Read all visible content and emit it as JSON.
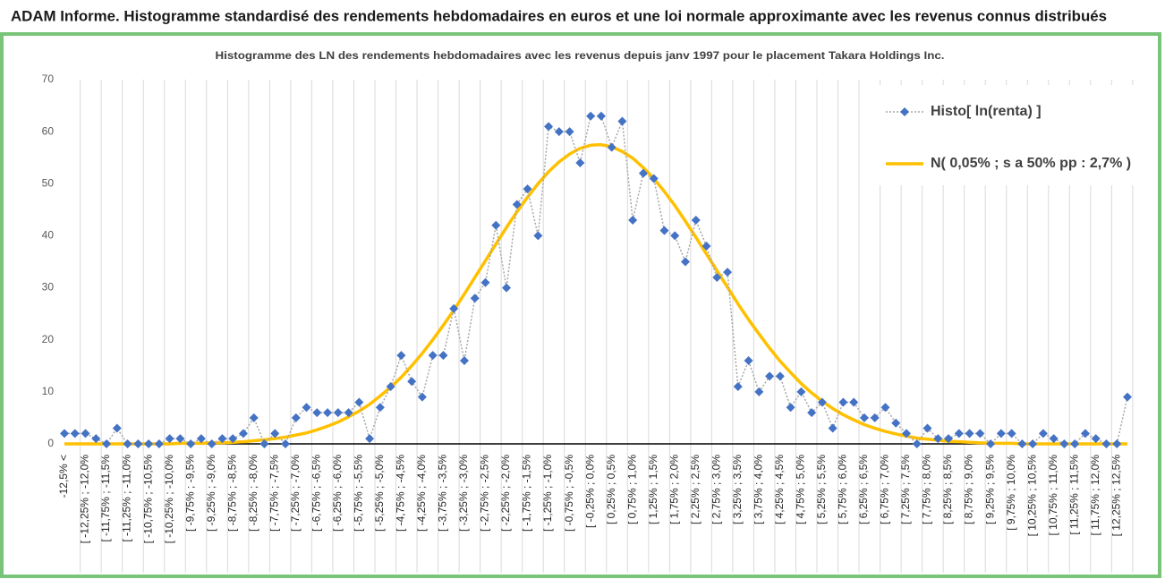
{
  "chart_data": {
    "type": "line",
    "title": "ADAM Informe. Histogramme standardisé des rendements hebdomadaires en euros et une loi normale approximante avec les revenus connus distribués",
    "subtitle": "Histogramme des LN des rendements hebdomadaires avec les revenus depuis janv 1997 pour le placement Takara Holdings Inc.",
    "categories": [
      "-12,5% <",
      null,
      "[ -12,25% ; -12,0%",
      null,
      "[ -11,75% ; -11,5%",
      null,
      "[ -11,25% ; -11,0%",
      null,
      "[ -10,75% ; -10,5%",
      null,
      "[ -10,25% ; -10,0%",
      null,
      "[ -9,75% ; -9,5%",
      null,
      "[ -9,25% ; -9,0%",
      null,
      "[ -8,75% ; -8,5%",
      null,
      "[ -8,25% ; -8,0%",
      null,
      "[ -7,75% ; -7,5%",
      null,
      "[ -7,25% ; -7,0%",
      null,
      "[ -6,75% ; -6,5%",
      null,
      "[ -6,25% ; -6,0%",
      null,
      "[ -5,75% ; -5,5%",
      null,
      "[ -5,25% ; -5,0%",
      null,
      "[ -4,75% ; -4,5%",
      null,
      "[ -4,25% ; -4,0%",
      null,
      "[ -3,75% ; -3,5%",
      null,
      "[ -3,25% ; -3,0%",
      null,
      "[ -2,75% ; -2,5%",
      null,
      "[ -2,25% ; -2,0%",
      null,
      "[ -1,75% ; -1,5%",
      null,
      "[ -1,25% ; -1,0%",
      null,
      "[ -0,75% ; -0,5%",
      null,
      "[ -0,25% ; 0,0%",
      null,
      "[ 0,25% ; 0,5%",
      null,
      "[ 0,75% ; 1,0%",
      null,
      "[ 1,25% ; 1,5%",
      null,
      "[ 1,75% ; 2,0%",
      null,
      "[ 2,25% ; 2,5%",
      null,
      "[ 2,75% ; 3,0%",
      null,
      "[ 3,25% ; 3,5%",
      null,
      "[ 3,75% ; 4,0%",
      null,
      "[ 4,25% ; 4,5%",
      null,
      "[ 4,75% ; 5,0%",
      null,
      "[ 5,25% ; 5,5%",
      null,
      "[ 5,75% ; 6,0%",
      null,
      "[ 6,25% ; 6,5%",
      null,
      "[ 6,75% ; 7,0%",
      null,
      "[ 7,25% ; 7,5%",
      null,
      "[ 7,75% ; 8,0%",
      null,
      "[ 8,25% ; 8,5%",
      null,
      "[ 8,75% ; 9,0%",
      null,
      "[ 9,25% ; 9,5%",
      null,
      "[ 9,75% ; 10,0%",
      null,
      "[ 10,25% ; 10,5%",
      null,
      "[ 10,75% ; 11,0%",
      null,
      "[ 11,25% ; 11,5%",
      null,
      "[ 11,75% ; 12,0%",
      null,
      "[ 12,25% ; 12,5%",
      null
    ],
    "series": [
      {
        "name": "Histo[ ln(renta) ]",
        "color": "#4472c4",
        "line_color": "#a6a6a6",
        "marker": "diamond",
        "values": [
          2,
          2,
          2,
          1,
          0,
          3,
          0,
          0,
          0,
          0,
          1,
          1,
          0,
          1,
          0,
          1,
          1,
          2,
          5,
          0,
          2,
          0,
          5,
          7,
          6,
          6,
          6,
          6,
          8,
          1,
          7,
          11,
          17,
          12,
          9,
          17,
          17,
          26,
          16,
          28,
          31,
          42,
          30,
          46,
          49,
          40,
          61,
          60,
          60,
          54,
          63,
          63,
          57,
          62,
          43,
          52,
          51,
          41,
          40,
          35,
          43,
          38,
          32,
          33,
          11,
          16,
          10,
          13,
          13,
          7,
          10,
          6,
          8,
          3,
          8,
          8,
          5,
          5,
          7,
          4,
          2,
          0,
          3,
          1,
          1,
          2,
          2,
          2,
          0,
          2,
          2,
          0,
          0,
          2,
          1,
          0,
          0,
          2,
          1,
          0,
          0,
          9
        ]
      },
      {
        "name": "N( 0,05% ; s a 50% pp : 2,7% )",
        "color": "#ffc000",
        "values": [
          0,
          0,
          0,
          0,
          0,
          0,
          0,
          0,
          0,
          0,
          0,
          0.1,
          0.1,
          0.1,
          0.2,
          0.2,
          0.3,
          0.4,
          0.6,
          0.8,
          1.0,
          1.3,
          1.7,
          2.1,
          2.7,
          3.4,
          4.2,
          5.2,
          6.3,
          7.6,
          9.2,
          10.9,
          12.8,
          15.0,
          17.4,
          20.0,
          22.8,
          25.7,
          28.8,
          32.0,
          35.2,
          38.4,
          41.6,
          44.6,
          47.4,
          50.0,
          52.3,
          54.2,
          55.7,
          56.8,
          57.4,
          57.5,
          57.1,
          56.2,
          54.9,
          53.1,
          51.0,
          48.5,
          45.8,
          42.8,
          39.7,
          36.5,
          33.3,
          30.1,
          26.9,
          23.9,
          21.1,
          18.4,
          15.9,
          13.7,
          11.6,
          9.8,
          8.2,
          6.8,
          5.6,
          4.6,
          3.7,
          3.0,
          2.4,
          1.9,
          1.5,
          1.1,
          0.9,
          0.7,
          0.5,
          0.4,
          0.3,
          0.2,
          0.1,
          0.1,
          0.1,
          0,
          0,
          0,
          0,
          0,
          0,
          0,
          0,
          0,
          0,
          0
        ]
      }
    ],
    "ylim": [
      0,
      70
    ],
    "yticks": [
      0,
      10,
      20,
      30,
      40,
      50,
      60,
      70
    ],
    "grid": false,
    "legend": "top-right"
  }
}
